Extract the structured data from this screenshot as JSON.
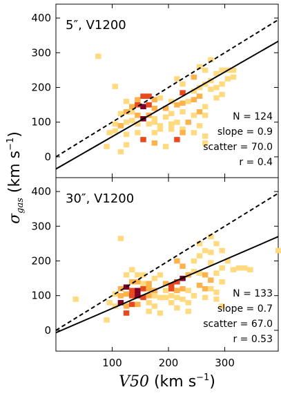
{
  "chart_data": [
    {
      "type": "heatmap",
      "title": "5″, V1200",
      "stats": {
        "n": "N = 124",
        "slope": "slope = 0.9",
        "scatter": "scatter = 70.0",
        "r": "r = 0.4"
      },
      "xlim": [
        0,
        395
      ],
      "ylim": [
        -60,
        440
      ],
      "xticks": [
        100,
        200,
        300
      ],
      "yticks": [
        0,
        100,
        200,
        300,
        400
      ],
      "ytick_labels": [
        "0",
        "100",
        "200",
        "300",
        "400"
      ],
      "one_to_one_line": {
        "style": "dashed",
        "slope": 1.0,
        "intercept": 0
      },
      "fit_line": {
        "style": "solid",
        "x": [
          0,
          395
        ],
        "y": [
          -35,
          333
        ]
      },
      "bin_size": [
        10,
        14.5
      ],
      "cells": [
        [
          75,
          290,
          1
        ],
        [
          105,
          203,
          1
        ],
        [
          155,
          110,
          1
        ],
        [
          125,
          160,
          1
        ],
        [
          145,
          165,
          2
        ],
        [
          155,
          175,
          3
        ],
        [
          165,
          175,
          3
        ],
        [
          175,
          165,
          2
        ],
        [
          185,
          170,
          1
        ],
        [
          135,
          145,
          2
        ],
        [
          145,
          150,
          3
        ],
        [
          155,
          145,
          4
        ],
        [
          165,
          150,
          3
        ],
        [
          175,
          140,
          2
        ],
        [
          115,
          125,
          1
        ],
        [
          125,
          130,
          2
        ],
        [
          135,
          130,
          1
        ],
        [
          145,
          120,
          2
        ],
        [
          155,
          110,
          4
        ],
        [
          165,
          120,
          2
        ],
        [
          175,
          110,
          1
        ],
        [
          105,
          95,
          1
        ],
        [
          115,
          90,
          2
        ],
        [
          125,
          100,
          1
        ],
        [
          135,
          105,
          1
        ],
        [
          145,
          95,
          1
        ],
        [
          165,
          95,
          1
        ],
        [
          175,
          100,
          1
        ],
        [
          185,
          90,
          1
        ],
        [
          95,
          70,
          1
        ],
        [
          105,
          75,
          1
        ],
        [
          125,
          65,
          1
        ],
        [
          145,
          70,
          1
        ],
        [
          175,
          70,
          1
        ],
        [
          185,
          80,
          1
        ],
        [
          90,
          30,
          1
        ],
        [
          115,
          15,
          1
        ],
        [
          125,
          35,
          1
        ],
        [
          155,
          50,
          3
        ],
        [
          175,
          40,
          2
        ],
        [
          195,
          30,
          1
        ],
        [
          195,
          140,
          2
        ],
        [
          205,
          160,
          1
        ],
        [
          215,
          150,
          2
        ],
        [
          225,
          155,
          2
        ],
        [
          235,
          160,
          1
        ],
        [
          205,
          125,
          1
        ],
        [
          225,
          130,
          1
        ],
        [
          195,
          115,
          1
        ],
        [
          215,
          100,
          1
        ],
        [
          205,
          80,
          1
        ],
        [
          225,
          80,
          1
        ],
        [
          215,
          50,
          3
        ],
        [
          225,
          70,
          2
        ],
        [
          205,
          95,
          1
        ],
        [
          215,
          225,
          1
        ],
        [
          225,
          210,
          1
        ],
        [
          225,
          185,
          3
        ],
        [
          245,
          190,
          1
        ],
        [
          255,
          200,
          1
        ],
        [
          265,
          210,
          1
        ],
        [
          245,
          165,
          2
        ],
        [
          255,
          175,
          2
        ],
        [
          265,
          145,
          1
        ],
        [
          255,
          130,
          2
        ],
        [
          245,
          120,
          1
        ],
        [
          265,
          120,
          1
        ],
        [
          235,
          100,
          2
        ],
        [
          255,
          90,
          1
        ],
        [
          245,
          70,
          1
        ],
        [
          265,
          60,
          1
        ],
        [
          265,
          40,
          1
        ],
        [
          255,
          260,
          1
        ],
        [
          265,
          250,
          1
        ],
        [
          275,
          280,
          1
        ],
        [
          285,
          240,
          1
        ],
        [
          285,
          200,
          1
        ],
        [
          295,
          250,
          1
        ],
        [
          305,
          250,
          1
        ],
        [
          315,
          250,
          1
        ],
        [
          275,
          220,
          1
        ],
        [
          295,
          210,
          1
        ],
        [
          305,
          225,
          1
        ],
        [
          315,
          230,
          1
        ],
        [
          245,
          230,
          2
        ],
        [
          275,
          195,
          1
        ],
        [
          285,
          170,
          1
        ],
        [
          295,
          180,
          1
        ]
      ]
    },
    {
      "type": "heatmap",
      "title": "30″, V1200",
      "stats": {
        "n": "N = 133",
        "slope": "slope = 0.7",
        "scatter": "scatter = 67.0",
        "r": "r = 0.53"
      },
      "xlim": [
        0,
        395
      ],
      "ylim": [
        -60,
        440
      ],
      "xticks": [
        100,
        200,
        300
      ],
      "xtick_labels": [
        "100",
        "200",
        "300"
      ],
      "yticks": [
        0,
        100,
        200,
        300,
        400
      ],
      "ytick_labels": [
        "0",
        "100",
        "200",
        "300",
        "400"
      ],
      "one_to_one_line": {
        "style": "dashed",
        "slope": 1.0,
        "intercept": 0
      },
      "fit_line": {
        "style": "solid",
        "x": [
          0,
          395
        ],
        "y": [
          -7,
          270
        ]
      },
      "bin_size": [
        10,
        14.5
      ],
      "cells": [
        [
          35,
          90,
          1
        ],
        [
          115,
          265,
          1
        ],
        [
          125,
          160,
          1
        ],
        [
          135,
          175,
          1
        ],
        [
          145,
          160,
          1
        ],
        [
          155,
          160,
          1
        ],
        [
          135,
          140,
          2
        ],
        [
          145,
          140,
          2
        ],
        [
          155,
          135,
          1
        ],
        [
          165,
          135,
          2
        ],
        [
          175,
          150,
          1
        ],
        [
          185,
          160,
          1
        ],
        [
          115,
          120,
          2
        ],
        [
          125,
          125,
          4
        ],
        [
          135,
          115,
          3
        ],
        [
          145,
          115,
          4
        ],
        [
          155,
          120,
          3
        ],
        [
          165,
          120,
          2
        ],
        [
          175,
          115,
          2
        ],
        [
          105,
          105,
          1
        ],
        [
          115,
          100,
          2
        ],
        [
          125,
          105,
          2
        ],
        [
          135,
          100,
          3
        ],
        [
          145,
          100,
          4
        ],
        [
          155,
          95,
          3
        ],
        [
          165,
          100,
          2
        ],
        [
          175,
          100,
          1
        ],
        [
          185,
          95,
          1
        ],
        [
          95,
          80,
          1
        ],
        [
          105,
          70,
          1
        ],
        [
          115,
          80,
          4
        ],
        [
          125,
          70,
          2
        ],
        [
          135,
          75,
          3
        ],
        [
          145,
          75,
          2
        ],
        [
          165,
          80,
          1
        ],
        [
          175,
          70,
          1
        ],
        [
          90,
          30,
          1
        ],
        [
          125,
          50,
          3
        ],
        [
          165,
          55,
          1
        ],
        [
          185,
          50,
          1
        ],
        [
          195,
          135,
          2
        ],
        [
          205,
          130,
          3
        ],
        [
          215,
          140,
          3
        ],
        [
          225,
          150,
          4
        ],
        [
          235,
          160,
          2
        ],
        [
          195,
          115,
          1
        ],
        [
          205,
          120,
          3
        ],
        [
          215,
          115,
          2
        ],
        [
          225,
          120,
          2
        ],
        [
          235,
          115,
          1
        ],
        [
          195,
          95,
          1
        ],
        [
          205,
          100,
          1
        ],
        [
          215,
          95,
          1
        ],
        [
          225,
          90,
          1
        ],
        [
          235,
          80,
          1
        ],
        [
          205,
          80,
          1
        ],
        [
          215,
          65,
          1
        ],
        [
          235,
          55,
          1
        ],
        [
          215,
          200,
          2
        ],
        [
          225,
          185,
          2
        ],
        [
          245,
          200,
          1
        ],
        [
          255,
          215,
          1
        ],
        [
          265,
          230,
          1
        ],
        [
          275,
          225,
          1
        ],
        [
          245,
          170,
          1
        ],
        [
          255,
          165,
          1
        ],
        [
          265,
          160,
          2
        ],
        [
          275,
          145,
          2
        ],
        [
          285,
          165,
          1
        ],
        [
          255,
          130,
          2
        ],
        [
          265,
          120,
          2
        ],
        [
          275,
          120,
          1
        ],
        [
          285,
          110,
          1
        ],
        [
          295,
          140,
          1
        ],
        [
          245,
          100,
          1
        ],
        [
          265,
          95,
          1
        ],
        [
          285,
          90,
          1
        ],
        [
          295,
          70,
          1
        ],
        [
          255,
          250,
          1
        ],
        [
          275,
          270,
          1
        ],
        [
          285,
          250,
          1
        ],
        [
          295,
          230,
          1
        ],
        [
          305,
          200,
          1
        ],
        [
          315,
          175,
          1
        ],
        [
          325,
          180,
          1
        ],
        [
          335,
          180,
          1
        ],
        [
          345,
          175,
          1
        ],
        [
          395,
          230,
          1
        ],
        [
          295,
          180,
          1
        ],
        [
          275,
          195,
          1
        ]
      ]
    }
  ],
  "colors": {
    "level_1": "#ffda80",
    "level_2": "#feb24c",
    "level_3": "#e8491f",
    "level_4": "#800026",
    "dashed_line": "#000000",
    "fit_line": "#000000"
  },
  "axes": {
    "ylabel_symbol": "σ",
    "ylabel_subscript": "gas",
    "ylabel_unit": " (km s",
    "ylabel_exp": "−1",
    "ylabel_close": ")",
    "xlabel_symbol": "V50",
    "xlabel_unit": " (km s",
    "xlabel_exp": "−1",
    "xlabel_close": ")"
  }
}
